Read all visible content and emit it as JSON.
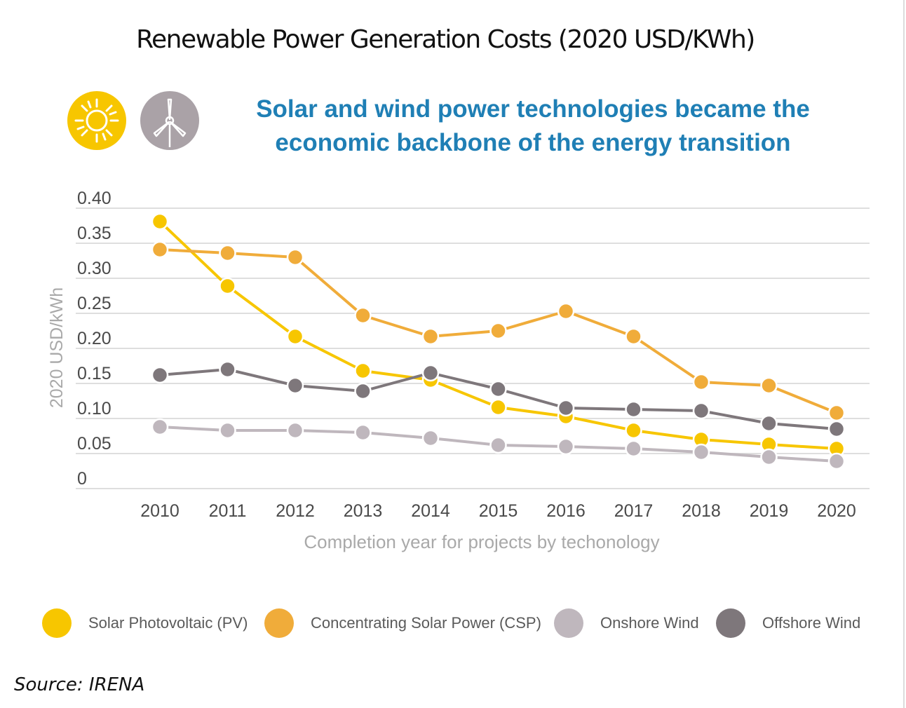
{
  "page": {
    "title": "Renewable Power Generation Costs (2020 USD/KWh)",
    "headline_line1": "Solar and wind power technologies became the",
    "headline_line2": "economic backbone of the energy transition",
    "source": "Source: IRENA",
    "icons": [
      "sun-icon",
      "wind-turbine-icon"
    ]
  },
  "colors": {
    "pv": "#f7c600",
    "csp": "#f0ac3a",
    "onshore": "#bfb7bd",
    "offshore": "#7e777b",
    "headline": "#1f7fb5",
    "axis_text": "#4a4a4a",
    "axis_title": "#a9a9a9",
    "grid": "#dedede"
  },
  "legend": [
    {
      "label": "Solar Photovoltaic (PV)",
      "color": "#f7c600"
    },
    {
      "label": "Concentrating Solar Power (CSP)",
      "color": "#f0ac3a"
    },
    {
      "label": "Onshore Wind",
      "color": "#bfb7bd"
    },
    {
      "label": "Offshore Wind",
      "color": "#7e777b"
    }
  ],
  "chart_data": {
    "type": "line",
    "xlabel": "Completion year for projects by techonology",
    "ylabel": "2020 USD/kWh",
    "x": [
      2010,
      2011,
      2012,
      2013,
      2014,
      2015,
      2016,
      2017,
      2018,
      2019,
      2020
    ],
    "ylim": [
      0,
      0.4
    ],
    "yticks": [
      "0.40",
      "0.35",
      "0.30",
      "0.25",
      "0.20",
      "0.15",
      "0.10",
      "0.05",
      "0"
    ],
    "ytick_values": [
      0.4,
      0.35,
      0.3,
      0.25,
      0.2,
      0.15,
      0.1,
      0.05,
      0
    ],
    "grid": true,
    "legend_position": "bottom",
    "series": [
      {
        "name": "Solar Photovoltaic (PV)",
        "color": "#f7c600",
        "values": [
          0.381,
          0.289,
          0.217,
          0.168,
          0.155,
          0.116,
          0.103,
          0.083,
          0.07,
          0.063,
          0.057
        ]
      },
      {
        "name": "Concentrating Solar Power (CSP)",
        "color": "#f0ac3a",
        "values": [
          0.341,
          0.336,
          0.33,
          0.247,
          0.217,
          0.225,
          0.253,
          0.217,
          0.152,
          0.147,
          0.108
        ]
      },
      {
        "name": "Onshore Wind",
        "color": "#bfb7bd",
        "values": [
          0.088,
          0.083,
          0.083,
          0.08,
          0.072,
          0.062,
          0.06,
          0.057,
          0.052,
          0.045,
          0.039
        ]
      },
      {
        "name": "Offshore Wind",
        "color": "#7e777b",
        "values": [
          0.162,
          0.17,
          0.147,
          0.139,
          0.165,
          0.142,
          0.115,
          0.113,
          0.111,
          0.093,
          0.085
        ]
      }
    ]
  }
}
